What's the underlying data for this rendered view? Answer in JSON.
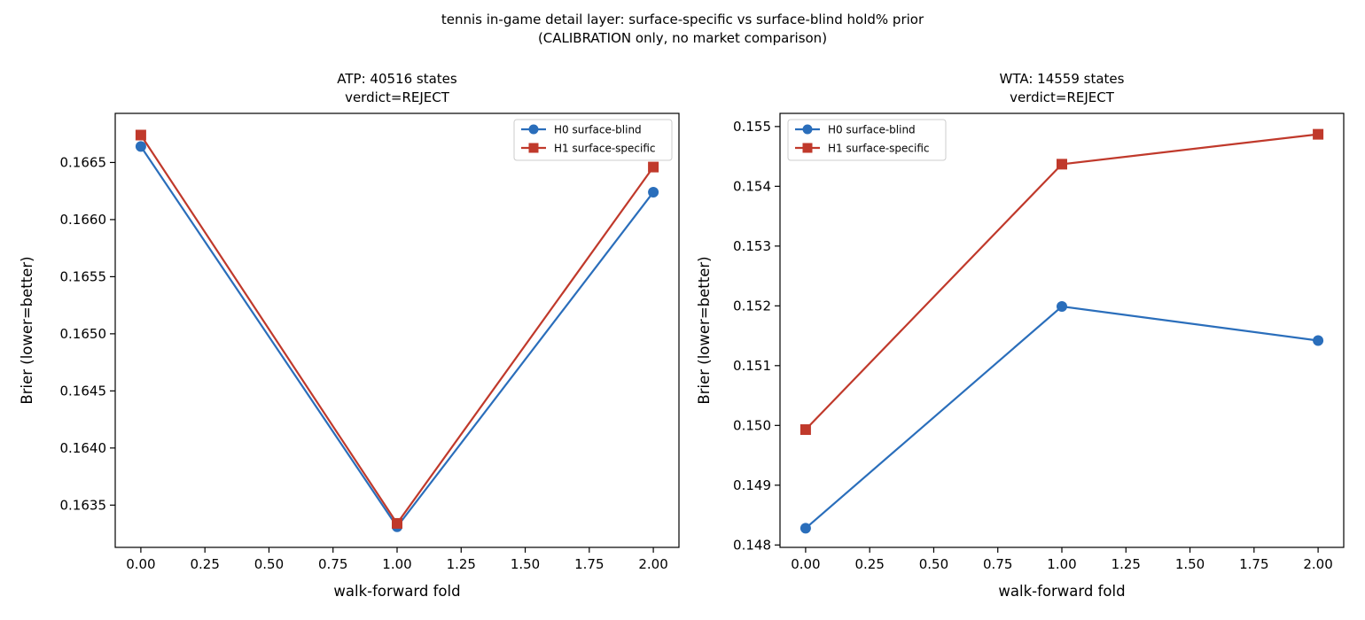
{
  "figure": {
    "title_line1": "tennis in-game detail layer: surface-specific vs surface-blind hold% prior",
    "title_line2": "(CALIBRATION only, no market comparison)"
  },
  "colors": {
    "h0": "#2a6ebb",
    "h1": "#c0392b"
  },
  "chart_data": [
    {
      "type": "line",
      "title_line1": "ATP: 40516 states",
      "title_line2": "verdict=REJECT",
      "xlabel": "walk-forward fold",
      "ylabel": "Brier (lower=better)",
      "x": [
        0,
        1,
        2
      ],
      "xlim": [
        -0.1,
        2.1
      ],
      "ylim": [
        0.16313,
        0.16693
      ],
      "xticks": [
        0.0,
        0.25,
        0.5,
        0.75,
        1.0,
        1.25,
        1.5,
        1.75,
        2.0
      ],
      "xtick_labels": [
        "0.00",
        "0.25",
        "0.50",
        "0.75",
        "1.00",
        "1.25",
        "1.50",
        "1.75",
        "2.00"
      ],
      "yticks": [
        0.1635,
        0.164,
        0.1645,
        0.165,
        0.1655,
        0.166,
        0.1665
      ],
      "ytick_labels": [
        "0.1635",
        "0.1640",
        "0.1645",
        "0.1650",
        "0.1655",
        "0.1660",
        "0.1665"
      ],
      "grid": false,
      "legend": "upper-right",
      "series": [
        {
          "name": "H0 surface-blind",
          "color": "#2a6ebb",
          "marker": "circle",
          "values": [
            0.16664,
            0.16331,
            0.16624
          ]
        },
        {
          "name": "H1 surface-specific",
          "color": "#c0392b",
          "marker": "square",
          "values": [
            0.16674,
            0.16334,
            0.16646
          ]
        }
      ]
    },
    {
      "type": "line",
      "title_line1": "WTA: 14559 states",
      "title_line2": "verdict=REJECT",
      "xlabel": "walk-forward fold",
      "ylabel": "Brier (lower=better)",
      "x": [
        0,
        1,
        2
      ],
      "xlim": [
        -0.1,
        2.1
      ],
      "ylim": [
        0.14796,
        0.15522
      ],
      "xticks": [
        0.0,
        0.25,
        0.5,
        0.75,
        1.0,
        1.25,
        1.5,
        1.75,
        2.0
      ],
      "xtick_labels": [
        "0.00",
        "0.25",
        "0.50",
        "0.75",
        "1.00",
        "1.25",
        "1.50",
        "1.75",
        "2.00"
      ],
      "yticks": [
        0.148,
        0.149,
        0.15,
        0.151,
        0.152,
        0.153,
        0.154,
        0.155
      ],
      "ytick_labels": [
        "0.148",
        "0.149",
        "0.150",
        "0.151",
        "0.152",
        "0.153",
        "0.154",
        "0.155"
      ],
      "grid": false,
      "legend": "upper-left",
      "series": [
        {
          "name": "H0 surface-blind",
          "color": "#2a6ebb",
          "marker": "circle",
          "values": [
            0.14828,
            0.15199,
            0.15142
          ]
        },
        {
          "name": "H1 surface-specific",
          "color": "#c0392b",
          "marker": "square",
          "values": [
            0.14993,
            0.15437,
            0.15487
          ]
        }
      ]
    }
  ]
}
